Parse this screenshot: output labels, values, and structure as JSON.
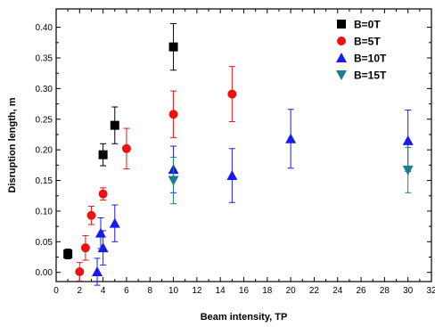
{
  "chart_data": {
    "type": "scatter",
    "title": "",
    "xlabel": "Beam intensity, TP",
    "ylabel": "Disruption length, m",
    "xlim": [
      0,
      32
    ],
    "ylim": [
      -0.015,
      0.43
    ],
    "xticks": [
      0,
      2,
      4,
      6,
      8,
      10,
      12,
      14,
      16,
      18,
      20,
      22,
      24,
      26,
      28,
      30,
      32
    ],
    "yticks": [
      0.0,
      0.05,
      0.1,
      0.15,
      0.2,
      0.25,
      0.3,
      0.35,
      0.4
    ],
    "grid": false,
    "legend_position": "top-right",
    "series": [
      {
        "name": "B=0T",
        "marker": "square",
        "color": "#000000",
        "points": [
          {
            "x": 1,
            "y": 0.03,
            "err": 0.008
          },
          {
            "x": 4,
            "y": 0.192,
            "err": 0.018
          },
          {
            "x": 5,
            "y": 0.24,
            "err": 0.03
          },
          {
            "x": 10,
            "y": 0.368,
            "err": 0.038
          }
        ]
      },
      {
        "name": "B=5T",
        "marker": "circle",
        "color": "#ee1111",
        "points": [
          {
            "x": 2,
            "y": 0.001,
            "err": 0.015
          },
          {
            "x": 2.5,
            "y": 0.04,
            "err": 0.02
          },
          {
            "x": 3,
            "y": 0.093,
            "err": 0.015
          },
          {
            "x": 4,
            "y": 0.128,
            "err": 0.01
          },
          {
            "x": 6,
            "y": 0.202,
            "err": 0.033
          },
          {
            "x": 10,
            "y": 0.258,
            "err": 0.038
          },
          {
            "x": 15,
            "y": 0.291,
            "err": 0.045
          }
        ]
      },
      {
        "name": "B=10T",
        "marker": "triangle-up",
        "color": "#1a1aee",
        "points": [
          {
            "x": 3.5,
            "y": 0.001,
            "err": 0.022
          },
          {
            "x": 3.8,
            "y": 0.064,
            "err": 0.025
          },
          {
            "x": 4,
            "y": 0.04,
            "err": 0.028
          },
          {
            "x": 5,
            "y": 0.08,
            "err": 0.03
          },
          {
            "x": 10,
            "y": 0.168,
            "err": 0.038
          },
          {
            "x": 15,
            "y": 0.158,
            "err": 0.044
          },
          {
            "x": 20,
            "y": 0.218,
            "err": 0.048
          },
          {
            "x": 30,
            "y": 0.215,
            "err": 0.05
          }
        ]
      },
      {
        "name": "B=15T",
        "marker": "triangle-down",
        "color": "#1a7f8a",
        "points": [
          {
            "x": 10,
            "y": 0.15,
            "err": 0.038
          },
          {
            "x": 30,
            "y": 0.167,
            "err": 0.037
          }
        ]
      }
    ]
  }
}
